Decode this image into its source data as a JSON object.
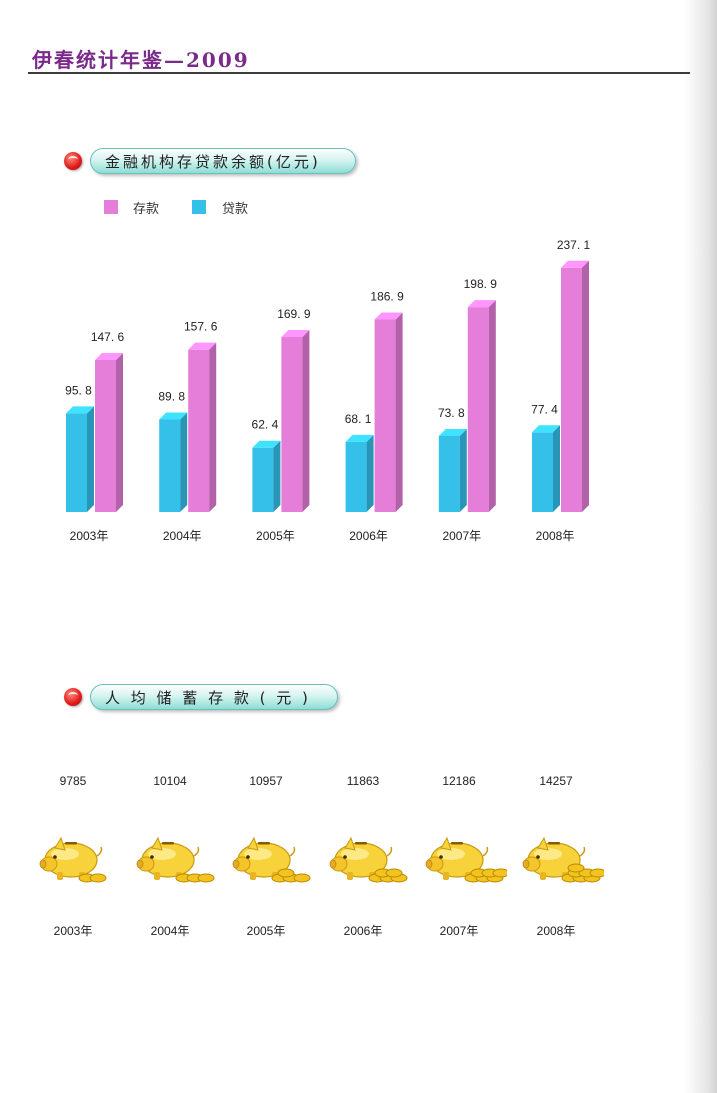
{
  "header": {
    "title": "伊春统计年鉴—2009"
  },
  "section1": {
    "title": "金融机构存贷款余额(亿元)"
  },
  "section2": {
    "title": "人 均 储 蓄 存 款 ( 元 )"
  },
  "colors": {
    "deposit": "#e47ed9",
    "loan": "#35c0ea",
    "title_purple": "#7a2b8a",
    "pill_border": "#63c2ba"
  },
  "icons": {
    "section_bullet": "red-bullet-icon",
    "savings": "piggy-bank-icon"
  },
  "chart_data": [
    {
      "type": "bar",
      "title": "金融机构存贷款余额(亿元)",
      "categories": [
        "2003年",
        "2004年",
        "2005年",
        "2006年",
        "2007年",
        "2008年"
      ],
      "series": [
        {
          "name": "贷款",
          "values": [
            95.8,
            89.8,
            62.4,
            68.1,
            73.8,
            77.4
          ],
          "labels": [
            "95. 8",
            "89. 8",
            "62. 4",
            "68. 1",
            "73. 8",
            "77. 4"
          ]
        },
        {
          "name": "存款",
          "values": [
            147.6,
            157.6,
            169.9,
            186.9,
            198.9,
            237.1
          ],
          "labels": [
            "147. 6",
            "157. 6",
            "169. 9",
            "186. 9",
            "198. 9",
            "237. 1"
          ]
        }
      ],
      "legend": [
        "存款",
        "贷款"
      ],
      "legend_position": "top-left",
      "ylim": [
        0,
        250
      ],
      "grid": false
    },
    {
      "type": "table",
      "title": "人 均 储 蓄 存 款 ( 元 )",
      "categories": [
        "2003年",
        "2004年",
        "2005年",
        "2006年",
        "2007年",
        "2008年"
      ],
      "values": [
        9785,
        10104,
        10957,
        11863,
        12186,
        14257
      ],
      "value_labels": [
        "9785",
        "10104",
        "10957",
        "11863",
        "12186",
        "14257"
      ]
    }
  ]
}
